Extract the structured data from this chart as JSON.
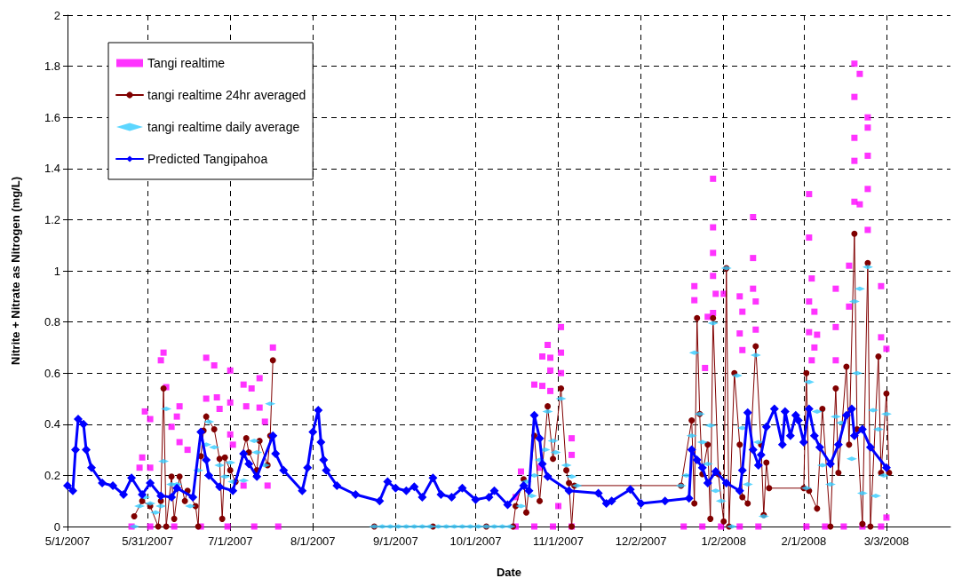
{
  "chart_data": {
    "type": "line",
    "xlabel": "Date",
    "ylabel": "Nitrite + Nitrate as Nitrogen (mg/L)",
    "xlim": [
      "2007-05-01",
      "2008-03-27"
    ],
    "xticks": [
      {
        "value": "2007-05-01",
        "label": "5/1/2007"
      },
      {
        "value": "2007-05-31",
        "label": "5/31/2007"
      },
      {
        "value": "2007-07-01",
        "label": "7/1/2007"
      },
      {
        "value": "2007-08-01",
        "label": "8/1/2007"
      },
      {
        "value": "2007-09-01",
        "label": "9/1/2007"
      },
      {
        "value": "2007-10-01",
        "label": "10/1/2007"
      },
      {
        "value": "2007-11-01",
        "label": "11/1/2007"
      },
      {
        "value": "2007-12-02",
        "label": "12/2/2007"
      },
      {
        "value": "2008-01-02",
        "label": "1/2/2008"
      },
      {
        "value": "2008-02-01",
        "label": "2/1/2008"
      },
      {
        "value": "2008-03-03",
        "label": "3/3/2008"
      }
    ],
    "ylim": [
      0,
      2
    ],
    "yticks": [
      0,
      0.2,
      0.4,
      0.6,
      0.8,
      1,
      1.2,
      1.4,
      1.6,
      1.8,
      2
    ],
    "grid": true,
    "legend": "top left",
    "series": [
      {
        "name": "Tangi realtime",
        "type": "scatter",
        "marker": "square",
        "color": "#ff00ff",
        "x": [
          "2007-05-25",
          "2007-05-28",
          "2007-05-29",
          "2007-05-30",
          "2007-06-01",
          "2007-06-01",
          "2007-06-01",
          "2007-06-05",
          "2007-06-06",
          "2007-06-07",
          "2007-06-09",
          "2007-06-10",
          "2007-06-11",
          "2007-06-12",
          "2007-06-12",
          "2007-06-15",
          "2007-06-20",
          "2007-06-22",
          "2007-06-22",
          "2007-06-25",
          "2007-06-26",
          "2007-06-27",
          "2007-06-30",
          "2007-07-01",
          "2007-07-01",
          "2007-07-01",
          "2007-07-02",
          "2007-07-06",
          "2007-07-06",
          "2007-07-07",
          "2007-07-09",
          "2007-07-10",
          "2007-07-12",
          "2007-07-12",
          "2007-07-14",
          "2007-07-15",
          "2007-07-17",
          "2007-07-19",
          "2007-10-16",
          "2007-10-16",
          "2007-10-18",
          "2007-10-23",
          "2007-10-23",
          "2007-10-25",
          "2007-10-26",
          "2007-10-26",
          "2007-10-28",
          "2007-10-29",
          "2007-10-29",
          "2007-10-29",
          "2007-10-30",
          "2007-11-01",
          "2007-11-02",
          "2007-11-02",
          "2007-11-02",
          "2007-11-06",
          "2007-11-06",
          "2007-11-06",
          "2007-12-18",
          "2007-12-22",
          "2007-12-22",
          "2007-12-25",
          "2007-12-26",
          "2007-12-27",
          "2007-12-29",
          "2007-12-29",
          "2007-12-29",
          "2007-12-29",
          "2007-12-29",
          "2007-12-30",
          "2008-01-01",
          "2008-01-02",
          "2008-01-08",
          "2008-01-08",
          "2008-01-08",
          "2008-01-09",
          "2008-01-09",
          "2008-01-13",
          "2008-01-13",
          "2008-01-13",
          "2008-01-14",
          "2008-01-14",
          "2008-01-15",
          "2008-02-02",
          "2008-02-03",
          "2008-02-03",
          "2008-02-03",
          "2008-02-03",
          "2008-02-04",
          "2008-02-04",
          "2008-02-05",
          "2008-02-05",
          "2008-02-06",
          "2008-02-09",
          "2008-02-13",
          "2008-02-13",
          "2008-02-13",
          "2008-02-16",
          "2008-02-18",
          "2008-02-18",
          "2008-02-20",
          "2008-02-20",
          "2008-02-20",
          "2008-02-20",
          "2008-02-20",
          "2008-02-22",
          "2008-02-22",
          "2008-02-23",
          "2008-02-25",
          "2008-02-25",
          "2008-02-25",
          "2008-02-25",
          "2008-02-25",
          "2008-03-01",
          "2008-03-01",
          "2008-03-01",
          "2008-03-03",
          "2008-03-03"
        ],
        "values": [
          0,
          0.23,
          0.27,
          0.45,
          0.42,
          0.23,
          0,
          0.65,
          0.68,
          0.545,
          0.39,
          0,
          0.43,
          0.47,
          0.33,
          0.3,
          0,
          0.66,
          0.5,
          0.63,
          0.505,
          0.46,
          0,
          0.61,
          0.485,
          0.36,
          0.32,
          0.555,
          0.16,
          0.47,
          0.54,
          0,
          0.58,
          0.465,
          0.41,
          0.16,
          0.7,
          0,
          0.115,
          0,
          0.215,
          0.555,
          0,
          0.23,
          0.55,
          0.665,
          0.71,
          0.61,
          0.53,
          0.66,
          0,
          0.08,
          0.78,
          0.68,
          0.6,
          0.345,
          0.28,
          0,
          0,
          0.94,
          0.885,
          0,
          0.62,
          0.82,
          1.36,
          1.17,
          1.07,
          0.98,
          0.835,
          0.91,
          0,
          0.91,
          0.9,
          0.755,
          0,
          0.84,
          0.69,
          1.21,
          1.05,
          0.93,
          0.88,
          0.77,
          0,
          0,
          1.3,
          1.13,
          0.88,
          0.76,
          0.97,
          0.65,
          0.84,
          0.7,
          0.75,
          0,
          0.93,
          0.78,
          0.65,
          0,
          1.02,
          0.86,
          1.81,
          1.68,
          1.52,
          1.43,
          1.27,
          1.77,
          1.26,
          0,
          1.6,
          1.56,
          1.45,
          1.32,
          1.16,
          0.94,
          0.74,
          0,
          0.695,
          0.035
        ]
      },
      {
        "name": "tangi realtime 24hr averaged",
        "type": "line",
        "marker": "circle",
        "color": "#800000",
        "x": [
          "2007-05-26",
          "2007-05-29",
          "2007-06-01",
          "2007-06-04",
          "2007-06-05",
          "2007-06-06",
          "2007-06-07",
          "2007-06-09",
          "2007-06-10",
          "2007-06-12",
          "2007-06-14",
          "2007-06-15",
          "2007-06-18",
          "2007-06-19",
          "2007-06-20",
          "2007-06-21",
          "2007-06-22",
          "2007-06-25",
          "2007-06-27",
          "2007-06-28",
          "2007-06-29",
          "2007-07-01",
          "2007-07-03",
          "2007-07-07",
          "2007-07-08",
          "2007-07-11",
          "2007-07-12",
          "2007-07-15",
          "2007-07-16",
          "2007-07-17",
          "2007-08-01",
          "2007-08-24",
          "2007-09-15",
          "2007-10-05",
          "2007-10-15",
          "2007-10-16",
          "2007-10-19",
          "2007-10-20",
          "2007-10-23",
          "2007-10-25",
          "2007-10-28",
          "2007-10-30",
          "2007-11-02",
          "2007-11-04",
          "2007-11-05",
          "2007-11-06",
          "2007-11-07",
          "2007-12-17",
          "2007-12-21",
          "2007-12-22",
          "2007-12-23",
          "2007-12-24",
          "2007-12-25",
          "2007-12-27",
          "2007-12-28",
          "2007-12-29",
          "2007-12-31",
          "2008-01-02",
          "2008-01-03",
          "2008-01-04",
          "2008-01-06",
          "2008-01-08",
          "2008-01-09",
          "2008-01-11",
          "2008-01-14",
          "2008-01-16",
          "2008-01-17",
          "2008-01-18",
          "2008-01-19",
          "2008-02-01",
          "2008-02-02",
          "2008-02-03",
          "2008-02-06",
          "2008-02-08",
          "2008-02-11",
          "2008-02-13",
          "2008-02-14",
          "2008-02-17",
          "2008-02-18",
          "2008-02-20",
          "2008-02-21",
          "2008-02-23",
          "2008-02-25",
          "2008-02-26",
          "2008-02-29",
          "2008-03-01",
          "2008-03-03",
          "2008-03-04"
        ],
        "values": [
          0.04,
          0.1,
          0.08,
          0,
          0.1,
          0.54,
          0,
          0.195,
          0.03,
          0.195,
          0.1,
          0.14,
          0.08,
          0,
          0.275,
          0.375,
          0.43,
          0.38,
          0.265,
          0.03,
          0.27,
          0.22,
          0.175,
          0.345,
          0.29,
          0.22,
          0.335,
          0.24,
          0.355,
          0.65,
          null,
          0,
          0,
          0,
          0,
          0.08,
          0.185,
          0.055,
          0.355,
          0.1,
          0.47,
          0.265,
          0.54,
          0.22,
          0.17,
          0,
          0.16,
          0.16,
          0.415,
          0.09,
          0.815,
          0.44,
          0.205,
          0.32,
          0.03,
          0.815,
          0.205,
          0.02,
          1.01,
          0,
          0.6,
          0.32,
          0.115,
          0.09,
          0.705,
          0.32,
          0.045,
          0.25,
          0.15,
          0.15,
          0.6,
          0.14,
          0.07,
          0.46,
          0,
          0.54,
          0.21,
          0.625,
          0.32,
          1.145,
          0.38,
          0.01,
          1.03,
          0,
          0.665,
          0.21,
          0.52,
          0.21
        ]
      },
      {
        "name": "tangi realtime daily average",
        "type": "scatter",
        "marker": "diamond",
        "color": "#33ccff",
        "x": [
          "2007-05-26",
          "2007-05-28",
          "2007-05-30",
          "2007-06-01",
          "2007-06-03",
          "2007-06-05",
          "2007-06-06",
          "2007-06-07",
          "2007-06-09",
          "2007-06-11",
          "2007-06-16",
          "2007-06-19",
          "2007-06-22",
          "2007-06-23",
          "2007-06-25",
          "2007-06-27",
          "2007-06-29",
          "2007-07-01",
          "2007-07-02",
          "2007-07-06",
          "2007-07-10",
          "2007-07-11",
          "2007-07-14",
          "2007-07-16",
          "2007-08-24",
          "2007-08-27",
          "2007-08-30",
          "2007-09-02",
          "2007-09-05",
          "2007-09-08",
          "2007-09-11",
          "2007-09-14",
          "2007-09-17",
          "2007-09-20",
          "2007-09-23",
          "2007-09-26",
          "2007-09-29",
          "2007-10-02",
          "2007-10-05",
          "2007-10-08",
          "2007-10-11",
          "2007-10-14",
          "2007-10-18",
          "2007-10-20",
          "2007-10-22",
          "2007-10-23",
          "2007-10-25",
          "2007-10-27",
          "2007-10-28",
          "2007-10-30",
          "2007-10-31",
          "2007-11-02",
          "2007-11-04",
          "2007-11-06",
          "2007-11-08",
          "2007-12-17",
          "2007-12-19",
          "2007-12-21",
          "2007-12-22",
          "2007-12-24",
          "2007-12-25",
          "2007-12-27",
          "2007-12-28",
          "2007-12-29",
          "2007-12-30",
          "2008-01-01",
          "2008-01-03",
          "2008-01-05",
          "2008-01-07",
          "2008-01-09",
          "2008-01-11",
          "2008-01-14",
          "2008-01-15",
          "2008-01-17",
          "2008-02-02",
          "2008-02-03",
          "2008-02-06",
          "2008-02-08",
          "2008-02-11",
          "2008-02-13",
          "2008-02-15",
          "2008-02-19",
          "2008-02-20",
          "2008-02-21",
          "2008-02-22",
          "2008-02-23",
          "2008-02-25",
          "2008-02-27",
          "2008-02-28",
          "2008-02-29",
          "2008-03-02",
          "2008-03-03"
        ],
        "values": [
          0,
          0.08,
          0.115,
          0.09,
          0.055,
          0.08,
          0.255,
          0.46,
          0.165,
          0.165,
          0.08,
          0.22,
          0.32,
          0.41,
          0.31,
          0.24,
          0.195,
          0.25,
          0.175,
          0.18,
          0.335,
          0.29,
          0.24,
          0.48,
          0,
          0,
          0,
          0,
          0,
          0,
          0,
          0,
          0,
          0,
          0,
          0,
          0,
          0,
          0,
          0,
          0,
          0,
          0.08,
          0.175,
          0.12,
          0.2,
          0.26,
          0.3,
          0.45,
          0.335,
          0.29,
          0.5,
          0.24,
          0.195,
          0.16,
          0.16,
          0.2,
          0.355,
          0.68,
          0.44,
          0.33,
          0.245,
          0.395,
          0.795,
          0.14,
          0.1,
          1.01,
          0,
          0.59,
          0.385,
          0.165,
          0.67,
          0.33,
          0.04,
          0.15,
          0.565,
          0.45,
          0.24,
          0.165,
          0.43,
          0.405,
          0.265,
          0.88,
          0.6,
          0.93,
          0.13,
          1.015,
          0.455,
          0.12,
          0.38,
          0.2,
          0.44
        ]
      },
      {
        "name": "Predicted Tangipahoa",
        "type": "line",
        "marker": "diamond",
        "color": "#0000ff",
        "x": [
          "2007-05-01",
          "2007-05-03",
          "2007-05-04",
          "2007-05-05",
          "2007-05-07",
          "2007-05-08",
          "2007-05-10",
          "2007-05-14",
          "2007-05-18",
          "2007-05-22",
          "2007-05-25",
          "2007-05-29",
          "2007-06-01",
          "2007-06-05",
          "2007-06-09",
          "2007-06-11",
          "2007-06-17",
          "2007-06-20",
          "2007-06-22",
          "2007-06-23",
          "2007-06-27",
          "2007-07-02",
          "2007-07-06",
          "2007-07-08",
          "2007-07-11",
          "2007-07-17",
          "2007-07-18",
          "2007-07-21",
          "2007-07-28",
          "2007-07-30",
          "2007-08-01",
          "2007-08-03",
          "2007-08-04",
          "2007-08-05",
          "2007-08-06",
          "2007-08-10",
          "2007-08-17",
          "2007-08-26",
          "2007-08-29",
          "2007-09-01",
          "2007-09-05",
          "2007-09-08",
          "2007-09-11",
          "2007-09-15",
          "2007-09-18",
          "2007-09-22",
          "2007-09-26",
          "2007-10-01",
          "2007-10-06",
          "2007-10-08",
          "2007-10-13",
          "2007-10-19",
          "2007-10-21",
          "2007-10-23",
          "2007-10-25",
          "2007-10-26",
          "2007-10-28",
          "2007-11-05",
          "2007-11-16",
          "2007-11-19",
          "2007-11-21",
          "2007-11-28",
          "2007-12-02",
          "2007-12-11",
          "2007-12-20",
          "2007-12-21",
          "2007-12-23",
          "2007-12-25",
          "2007-12-27",
          "2007-12-30",
          "2008-01-03",
          "2008-01-08",
          "2008-01-09",
          "2008-01-11",
          "2008-01-13",
          "2008-01-15",
          "2008-01-16",
          "2008-01-18",
          "2008-01-21",
          "2008-01-24",
          "2008-01-25",
          "2008-01-27",
          "2008-01-29",
          "2008-01-30",
          "2008-02-01",
          "2008-02-03",
          "2008-02-05",
          "2008-02-07",
          "2008-02-11",
          "2008-02-14",
          "2008-02-17",
          "2008-02-19",
          "2008-02-20",
          "2008-02-23",
          "2008-02-26",
          "2008-03-03"
        ],
        "values": [
          0.16,
          0.14,
          0.3,
          0.42,
          0.4,
          0.3,
          0.23,
          0.17,
          0.16,
          0.125,
          0.19,
          0.125,
          0.17,
          0.12,
          0.115,
          0.15,
          0.115,
          0.37,
          0.26,
          0.2,
          0.155,
          0.14,
          0.285,
          0.245,
          0.195,
          0.355,
          0.285,
          0.22,
          0.14,
          0.23,
          0.37,
          0.455,
          0.33,
          0.26,
          0.22,
          0.16,
          0.125,
          0.1,
          0.175,
          0.15,
          0.14,
          0.155,
          0.115,
          0.19,
          0.125,
          0.115,
          0.15,
          0.105,
          0.115,
          0.14,
          0.085,
          0.16,
          0.14,
          0.435,
          0.345,
          0.245,
          0.195,
          0.14,
          0.13,
          0.09,
          0.1,
          0.145,
          0.09,
          0.1,
          0.11,
          0.3,
          0.26,
          0.23,
          0.17,
          0.215,
          0.17,
          0.14,
          0.22,
          0.445,
          0.3,
          0.24,
          0.28,
          0.39,
          0.46,
          0.32,
          0.45,
          0.355,
          0.435,
          0.415,
          0.33,
          0.46,
          0.355,
          0.31,
          0.245,
          0.32,
          0.435,
          0.46,
          0.355,
          0.38,
          0.31,
          0.23
        ]
      }
    ]
  }
}
